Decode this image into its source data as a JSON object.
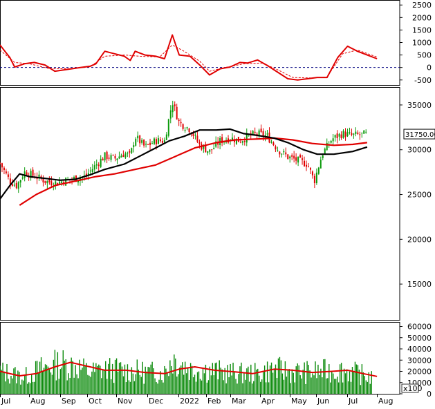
{
  "chart_data": [
    {
      "type": "line",
      "panel": "oscillator",
      "y_ticks": [
        2500,
        2000,
        1500,
        1000,
        500,
        0,
        -500
      ],
      "ylim": [
        -700,
        2700
      ],
      "zero_line": "dashed",
      "series": [
        {
          "color": "#e00000",
          "style": "solid",
          "points": [
            [
              "2021-06-25",
              900
            ],
            [
              "2021-07-05",
              400
            ],
            [
              "2021-07-10",
              20
            ],
            [
              "2021-07-20",
              150
            ],
            [
              "2021-07-30",
              200
            ],
            [
              "2021-08-10",
              100
            ],
            [
              "2021-08-20",
              -150
            ],
            [
              "2021-09-01",
              -80
            ],
            [
              "2021-09-15",
              0
            ],
            [
              "2021-09-25",
              50
            ],
            [
              "2021-10-01",
              150
            ],
            [
              "2021-10-10",
              650
            ],
            [
              "2021-10-20",
              550
            ],
            [
              "2021-10-30",
              450
            ],
            [
              "2021-11-05",
              280
            ],
            [
              "2021-11-10",
              650
            ],
            [
              "2021-11-20",
              500
            ],
            [
              "2021-12-01",
              450
            ],
            [
              "2021-12-10",
              350
            ],
            [
              "2021-12-18",
              1300
            ],
            [
              "2021-12-25",
              500
            ],
            [
              "2022-01-05",
              450
            ],
            [
              "2022-01-15",
              100
            ],
            [
              "2022-01-25",
              -300
            ],
            [
              "2022-02-05",
              -50
            ],
            [
              "2022-02-15",
              20
            ],
            [
              "2022-02-25",
              200
            ],
            [
              "2022-03-05",
              180
            ],
            [
              "2022-03-15",
              300
            ],
            [
              "2022-03-25",
              80
            ],
            [
              "2022-04-05",
              -200
            ],
            [
              "2022-04-15",
              -450
            ],
            [
              "2022-04-25",
              -500
            ],
            [
              "2022-05-05",
              -450
            ],
            [
              "2022-05-15",
              -400
            ],
            [
              "2022-05-25",
              -400
            ],
            [
              "2022-06-05",
              400
            ],
            [
              "2022-06-15",
              850
            ],
            [
              "2022-06-25",
              650
            ],
            [
              "2022-07-05",
              500
            ],
            [
              "2022-07-15",
              350
            ]
          ]
        },
        {
          "color": "#e00000",
          "style": "dashed",
          "points": [
            [
              "2021-06-25",
              700
            ],
            [
              "2021-07-10",
              200
            ],
            [
              "2021-07-25",
              150
            ],
            [
              "2021-08-15",
              -50
            ],
            [
              "2021-09-05",
              -50
            ],
            [
              "2021-09-25",
              30
            ],
            [
              "2021-10-10",
              450
            ],
            [
              "2021-10-30",
              500
            ],
            [
              "2021-11-15",
              450
            ],
            [
              "2021-12-05",
              420
            ],
            [
              "2021-12-18",
              900
            ],
            [
              "2021-12-30",
              650
            ],
            [
              "2022-01-15",
              250
            ],
            [
              "2022-01-25",
              -150
            ],
            [
              "2022-02-10",
              0
            ],
            [
              "2022-03-01",
              150
            ],
            [
              "2022-03-20",
              180
            ],
            [
              "2022-04-05",
              -100
            ],
            [
              "2022-04-20",
              -400
            ],
            [
              "2022-05-10",
              -420
            ],
            [
              "2022-05-25",
              -380
            ],
            [
              "2022-06-10",
              550
            ],
            [
              "2022-06-25",
              700
            ],
            [
              "2022-07-15",
              420
            ]
          ]
        }
      ]
    },
    {
      "type": "candlestick",
      "panel": "price",
      "y_ticks": [
        35000,
        30000,
        25000,
        20000,
        15000
      ],
      "ylim": [
        11000,
        37000
      ],
      "last_price_label": "31750.00",
      "x_labels": [
        "Jul",
        "Aug",
        "Sep",
        "Oct",
        "Nov",
        "Dec",
        "2022",
        "Feb",
        "Mar",
        "Apr",
        "May",
        "Jun",
        "Jul",
        "Aug"
      ],
      "close_points": [
        [
          "2021-06-25",
          28500
        ],
        [
          "2021-07-05",
          26500
        ],
        [
          "2021-07-12",
          26000
        ],
        [
          "2021-07-20",
          27500
        ],
        [
          "2021-08-01",
          27000
        ],
        [
          "2021-08-10",
          26500
        ],
        [
          "2021-08-20",
          26300
        ],
        [
          "2021-09-01",
          26600
        ],
        [
          "2021-09-10",
          26800
        ],
        [
          "2021-09-20",
          27000
        ],
        [
          "2021-10-01",
          28300
        ],
        [
          "2021-10-10",
          29300
        ],
        [
          "2021-10-20",
          29000
        ],
        [
          "2021-10-30",
          29600
        ],
        [
          "2021-11-05",
          29300
        ],
        [
          "2021-11-10",
          31500
        ],
        [
          "2021-11-20",
          30300
        ],
        [
          "2021-12-01",
          31000
        ],
        [
          "2021-12-10",
          31000
        ],
        [
          "2021-12-18",
          35400
        ],
        [
          "2021-12-25",
          33000
        ],
        [
          "2022-01-05",
          32300
        ],
        [
          "2022-01-15",
          30500
        ],
        [
          "2022-01-25",
          29800
        ],
        [
          "2022-02-05",
          31000
        ],
        [
          "2022-02-15",
          31300
        ],
        [
          "2022-02-25",
          31000
        ],
        [
          "2022-03-05",
          31500
        ],
        [
          "2022-03-15",
          31800
        ],
        [
          "2022-03-25",
          31500
        ],
        [
          "2022-04-05",
          30000
        ],
        [
          "2022-04-15",
          29200
        ],
        [
          "2022-04-25",
          28800
        ],
        [
          "2022-05-05",
          28400
        ],
        [
          "2022-05-12",
          26500
        ],
        [
          "2022-05-20",
          29500
        ],
        [
          "2022-05-30",
          31200
        ],
        [
          "2022-06-10",
          31800
        ],
        [
          "2022-06-20",
          31600
        ],
        [
          "2022-07-05",
          31750
        ]
      ],
      "ma_black": [
        [
          "2021-06-25",
          24500
        ],
        [
          "2021-07-05",
          26000
        ],
        [
          "2021-07-15",
          27300
        ],
        [
          "2021-07-25",
          27000
        ],
        [
          "2021-08-10",
          26800
        ],
        [
          "2021-08-25",
          26600
        ],
        [
          "2021-09-10",
          26700
        ],
        [
          "2021-09-25",
          27200
        ],
        [
          "2021-10-10",
          27800
        ],
        [
          "2021-10-30",
          28400
        ],
        [
          "2021-11-15",
          29300
        ],
        [
          "2021-12-01",
          30200
        ],
        [
          "2021-12-15",
          31000
        ],
        [
          "2021-12-30",
          31500
        ],
        [
          "2022-01-15",
          32200
        ],
        [
          "2022-02-01",
          32200
        ],
        [
          "2022-02-15",
          32300
        ],
        [
          "2022-03-01",
          31800
        ],
        [
          "2022-03-15",
          31600
        ],
        [
          "2022-04-01",
          31300
        ],
        [
          "2022-04-15",
          30800
        ],
        [
          "2022-05-01",
          30000
        ],
        [
          "2022-05-15",
          29500
        ],
        [
          "2022-06-01",
          29500
        ],
        [
          "2022-06-20",
          29800
        ],
        [
          "2022-07-05",
          30300
        ]
      ],
      "ma_red": [
        [
          "2021-07-15",
          23800
        ],
        [
          "2021-08-01",
          25000
        ],
        [
          "2021-08-20",
          26000
        ],
        [
          "2021-09-10",
          26500
        ],
        [
          "2021-10-01",
          27000
        ],
        [
          "2021-10-20",
          27300
        ],
        [
          "2021-11-10",
          27800
        ],
        [
          "2021-12-01",
          28300
        ],
        [
          "2021-12-20",
          29200
        ],
        [
          "2022-01-10",
          30200
        ],
        [
          "2022-02-01",
          30800
        ],
        [
          "2022-02-20",
          31100
        ],
        [
          "2022-03-15",
          31200
        ],
        [
          "2022-04-01",
          31300
        ],
        [
          "2022-04-20",
          31100
        ],
        [
          "2022-05-10",
          30700
        ],
        [
          "2022-06-01",
          30500
        ],
        [
          "2022-06-20",
          30600
        ],
        [
          "2022-07-05",
          30800
        ]
      ]
    },
    {
      "type": "bar",
      "panel": "volume",
      "y_ticks": [
        60000,
        50000,
        40000,
        30000,
        20000,
        10000,
        0
      ],
      "ylim": [
        0,
        64000
      ],
      "unit_label": "x100",
      "bar_color": "#0a8a0a",
      "ma_color": "#e00000",
      "volume_points": [
        [
          "2021-06-25",
          20000
        ],
        [
          "2021-07-05",
          18000
        ],
        [
          "2021-07-20",
          15000
        ],
        [
          "2021-08-05",
          22000
        ],
        [
          "2021-08-25",
          27000
        ],
        [
          "2021-09-10",
          25000
        ],
        [
          "2021-09-25",
          19000
        ],
        [
          "2021-10-10",
          22000
        ],
        [
          "2021-10-25",
          21000
        ],
        [
          "2021-11-10",
          20000
        ],
        [
          "2021-11-25",
          19000
        ],
        [
          "2021-12-10",
          19000
        ],
        [
          "2021-12-18",
          32000
        ],
        [
          "2022-01-05",
          22000
        ],
        [
          "2022-01-25",
          21000
        ],
        [
          "2022-02-10",
          19000
        ],
        [
          "2022-02-25",
          18000
        ],
        [
          "2022-03-15",
          18000
        ],
        [
          "2022-04-01",
          22000
        ],
        [
          "2022-04-15",
          20000
        ],
        [
          "2022-05-01",
          19000
        ],
        [
          "2022-05-20",
          20000
        ],
        [
          "2022-06-10",
          21000
        ],
        [
          "2022-06-25",
          18000
        ],
        [
          "2022-07-10",
          15000
        ]
      ],
      "ma_points": [
        [
          "2021-06-25",
          20000
        ],
        [
          "2021-07-15",
          16000
        ],
        [
          "2021-08-01",
          18000
        ],
        [
          "2021-08-20",
          24000
        ],
        [
          "2021-09-05",
          28000
        ],
        [
          "2021-09-25",
          24000
        ],
        [
          "2021-10-10",
          21000
        ],
        [
          "2021-11-01",
          21000
        ],
        [
          "2021-11-20",
          19000
        ],
        [
          "2021-12-10",
          18000
        ],
        [
          "2021-12-25",
          22000
        ],
        [
          "2022-01-10",
          24000
        ],
        [
          "2022-01-30",
          21000
        ],
        [
          "2022-02-20",
          19500
        ],
        [
          "2022-03-10",
          18000
        ],
        [
          "2022-04-01",
          22000
        ],
        [
          "2022-04-20",
          21000
        ],
        [
          "2022-05-10",
          19000
        ],
        [
          "2022-05-30",
          20000
        ],
        [
          "2022-06-15",
          21000
        ],
        [
          "2022-07-01",
          18000
        ],
        [
          "2022-07-15",
          15500
        ]
      ]
    }
  ]
}
